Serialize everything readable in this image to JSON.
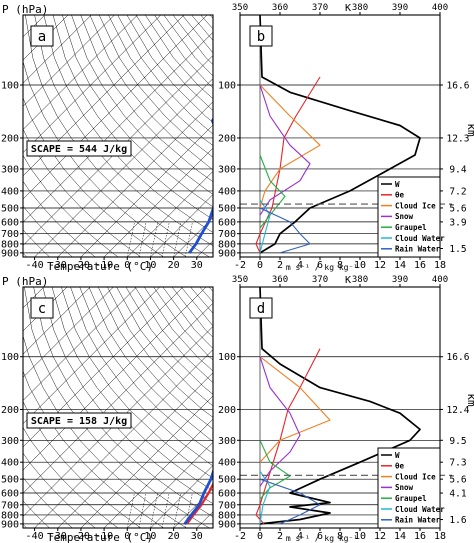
{
  "chart_data": [
    {
      "panel": "a",
      "type": "line",
      "xlabel": "Temperature (°C)",
      "ylabel": "P (hPa)",
      "x_ticks": [
        -40,
        -30,
        -20,
        -10,
        0,
        10,
        20,
        30
      ],
      "y_ticks": [
        100,
        200,
        300,
        400,
        500,
        600,
        700,
        800,
        900
      ],
      "xlim": [
        -45,
        37
      ],
      "ylim": [
        950,
        40
      ],
      "y_scale": "log",
      "annotation": "SCAPE = 544 J/kg",
      "series": [
        {
          "color": "#e8242a",
          "values": [
            [
              16,
              40
            ],
            [
              6,
              60
            ],
            [
              -3,
              85
            ],
            [
              -12,
              100
            ],
            [
              -6,
              130
            ],
            [
              -2,
              170
            ],
            [
              1,
              200
            ],
            [
              8,
              300
            ],
            [
              13,
              400
            ],
            [
              17,
              500
            ],
            [
              20,
              600
            ],
            [
              22,
              700
            ],
            [
              24,
              800
            ],
            [
              25,
              900
            ]
          ]
        },
        {
          "color": "#2050d0",
          "values": [
            [
              17,
              40
            ],
            [
              2,
              65
            ],
            [
              -17,
              100
            ],
            [
              -24,
              140
            ],
            [
              -22,
              160
            ],
            [
              -7,
              220
            ],
            [
              3,
              300
            ],
            [
              11,
              400
            ],
            [
              16,
              500
            ],
            [
              20,
              600
            ],
            [
              22,
              700
            ],
            [
              24,
              800
            ],
            [
              25,
              900
            ]
          ]
        }
      ]
    },
    {
      "panel": "b",
      "type": "line",
      "x_bottom_ticks": [
        -2,
        0,
        2,
        4,
        6,
        8,
        10,
        12,
        14,
        16,
        18
      ],
      "x_bottom_label": "m s⁻¹ / kg kg⁻¹",
      "x_top_ticks": [
        350,
        360,
        370,
        380,
        390,
        400
      ],
      "x_top_label": "K",
      "xlim": [
        -2,
        18
      ],
      "x_top_lim": [
        350,
        400
      ],
      "y_ticks": [
        100,
        200,
        300,
        400,
        500,
        600,
        700,
        800,
        900
      ],
      "ylim": [
        950,
        40
      ],
      "y_scale": "log",
      "right_axis_label": "km",
      "right_axis_ticks": [
        "16.6",
        "12.3",
        "9.4",
        "7.2",
        "5.6",
        "3.9",
        "1.5"
      ],
      "right_axis_pressures": [
        100,
        200,
        300,
        400,
        500,
        600,
        850
      ],
      "dashed_line_pressure": 475,
      "legend": [
        "W",
        "θe",
        "Cloud Ice",
        "Snow",
        "Graupel",
        "Cloud Water",
        "Rain Water"
      ],
      "series": [
        {
          "name": "W",
          "color": "#000000",
          "values": [
            [
              0,
              40
            ],
            [
              0.2,
              90
            ],
            [
              3,
              110
            ],
            [
              9,
              140
            ],
            [
              14,
              170
            ],
            [
              16,
              200
            ],
            [
              15.5,
              250
            ],
            [
              13,
              300
            ],
            [
              9,
              400
            ],
            [
              5,
              500
            ],
            [
              3.5,
              600
            ],
            [
              2,
              700
            ],
            [
              1.5,
              800
            ],
            [
              0,
              900
            ]
          ]
        },
        {
          "name": "θe",
          "color": "#e8242a",
          "values": [
            [
              370,
              90
            ],
            [
              364,
              150
            ],
            [
              361,
              200
            ],
            [
              360,
              300
            ],
            [
              358,
              500
            ],
            [
              355,
              700
            ],
            [
              354,
              800
            ],
            [
              355,
              900
            ]
          ]
        },
        {
          "name": "Cloud Ice",
          "color": "#f08020",
          "values": [
            [
              0,
              100
            ],
            [
              3,
              150
            ],
            [
              6,
              220
            ],
            [
              2,
              300
            ],
            [
              0.5,
              400
            ],
            [
              0,
              500
            ]
          ]
        },
        {
          "name": "Snow",
          "color": "#9a2fd0",
          "values": [
            [
              0,
              100
            ],
            [
              1,
              150
            ],
            [
              3,
              220
            ],
            [
              5,
              280
            ],
            [
              4,
              350
            ],
            [
              1,
              450
            ],
            [
              0,
              550
            ]
          ]
        },
        {
          "name": "Graupel",
          "color": "#22b040",
          "values": [
            [
              0,
              250
            ],
            [
              1,
              350
            ],
            [
              2.5,
              430
            ],
            [
              1,
              550
            ],
            [
              0,
              650
            ]
          ]
        },
        {
          "name": "Cloud Water",
          "color": "#22b8d8",
          "values": [
            [
              0,
              450
            ],
            [
              1,
              550
            ],
            [
              0.5,
              700
            ],
            [
              0,
              900
            ]
          ]
        },
        {
          "name": "Rain Water",
          "color": "#3060c0",
          "values": [
            [
              0,
              500
            ],
            [
              3,
              600
            ],
            [
              4,
              700
            ],
            [
              5,
              800
            ],
            [
              2,
              900
            ]
          ]
        }
      ]
    },
    {
      "panel": "c",
      "type": "line",
      "xlabel": "Temperature (°C)",
      "ylabel": "P (hPa)",
      "x_ticks": [
        -40,
        -30,
        -20,
        -10,
        0,
        10,
        20,
        30
      ],
      "y_ticks": [
        100,
        200,
        300,
        400,
        500,
        600,
        700,
        800,
        900
      ],
      "xlim": [
        -45,
        37
      ],
      "ylim": [
        950,
        40
      ],
      "y_scale": "log",
      "annotation": "SCAPE = 158 J/kg",
      "series": [
        {
          "color": "#e8242a",
          "values": [
            [
              16,
              40
            ],
            [
              4,
              65
            ],
            [
              -6,
              100
            ],
            [
              -13,
              130
            ],
            [
              -11,
              160
            ],
            [
              -3,
              200
            ],
            [
              6,
              300
            ],
            [
              12,
              400
            ],
            [
              17,
              500
            ],
            [
              20,
              600
            ],
            [
              22,
              700
            ],
            [
              23,
              800
            ],
            [
              24,
              900
            ]
          ]
        },
        {
          "color": "#2050d0",
          "values": [
            [
              17,
              40
            ],
            [
              -2,
              70
            ],
            [
              -17,
              110
            ],
            [
              -22,
              140
            ],
            [
              -19,
              170
            ],
            [
              -3,
              250
            ],
            [
              4,
              300
            ],
            [
              10,
              400
            ],
            [
              15,
              500
            ],
            [
              18,
              600
            ],
            [
              21,
              700
            ],
            [
              22,
              800
            ],
            [
              23,
              900
            ]
          ]
        }
      ]
    },
    {
      "panel": "d",
      "type": "line",
      "x_bottom_ticks": [
        -2,
        0,
        2,
        4,
        6,
        8,
        10,
        12,
        14,
        16,
        18
      ],
      "x_bottom_label": "m s⁻¹ / kg kg⁻¹",
      "x_top_ticks": [
        350,
        360,
        370,
        380,
        390,
        400
      ],
      "x_top_label": "K",
      "xlim": [
        -2,
        18
      ],
      "x_top_lim": [
        350,
        400
      ],
      "y_ticks": [
        100,
        200,
        300,
        400,
        500,
        600,
        700,
        800,
        900
      ],
      "ylim": [
        950,
        40
      ],
      "y_scale": "log",
      "right_axis_label": "km",
      "right_axis_ticks": [
        "16.6",
        "12.4",
        "9.5",
        "7.3",
        "5.6",
        "4.1",
        "1.6"
      ],
      "right_axis_pressures": [
        100,
        200,
        300,
        400,
        500,
        600,
        850
      ],
      "dashed_line_pressure": 475,
      "legend": [
        "W",
        "θe",
        "Cloud Ice",
        "Snow",
        "Graupel",
        "Cloud Water",
        "Rain Water"
      ],
      "series": [
        {
          "name": "W",
          "color": "#000000",
          "values": [
            [
              0,
              40
            ],
            [
              0.2,
              90
            ],
            [
              2,
              110
            ],
            [
              6,
              150
            ],
            [
              11,
              180
            ],
            [
              14,
              210
            ],
            [
              16,
              260
            ],
            [
              15,
              300
            ],
            [
              10,
              400
            ],
            [
              6,
              500
            ],
            [
              3,
              600
            ],
            [
              7,
              680
            ],
            [
              3,
              720
            ],
            [
              7,
              780
            ],
            [
              4,
              850
            ],
            [
              0,
              900
            ]
          ]
        },
        {
          "name": "θe",
          "color": "#e8242a",
          "values": [
            [
              370,
              90
            ],
            [
              365,
              150
            ],
            [
              362,
              200
            ],
            [
              360,
              300
            ],
            [
              357,
              500
            ],
            [
              355,
              700
            ],
            [
              354,
              800
            ],
            [
              356,
              900
            ]
          ]
        },
        {
          "name": "Cloud Ice",
          "color": "#f08020",
          "values": [
            [
              0,
              100
            ],
            [
              4,
              150
            ],
            [
              7,
              230
            ],
            [
              2,
              300
            ],
            [
              0,
              400
            ]
          ]
        },
        {
          "name": "Snow",
          "color": "#9a2fd0",
          "values": [
            [
              0,
              100
            ],
            [
              1,
              150
            ],
            [
              3,
              210
            ],
            [
              4,
              280
            ],
            [
              3,
              350
            ],
            [
              1,
              450
            ],
            [
              0,
              550
            ]
          ]
        },
        {
          "name": "Graupel",
          "color": "#22b040",
          "values": [
            [
              0,
              300
            ],
            [
              1,
              400
            ],
            [
              3,
              480
            ],
            [
              1,
              560
            ],
            [
              0,
              650
            ]
          ]
        },
        {
          "name": "Cloud Water",
          "color": "#22b8d8",
          "values": [
            [
              0,
              450
            ],
            [
              1,
              550
            ],
            [
              0.3,
              700
            ],
            [
              0,
              900
            ]
          ]
        },
        {
          "name": "Rain Water",
          "color": "#3060c0",
          "values": [
            [
              0,
              500
            ],
            [
              4,
              600
            ],
            [
              6,
              700
            ],
            [
              4,
              800
            ],
            [
              2,
              900
            ]
          ]
        }
      ]
    }
  ],
  "labels": {
    "p_axis_label": "P (hPa)",
    "temperature_label": "Temperature (°C)",
    "km_label": "km",
    "k_label": "K",
    "units_label": "m s⁻¹ / kg kg⁻¹"
  }
}
